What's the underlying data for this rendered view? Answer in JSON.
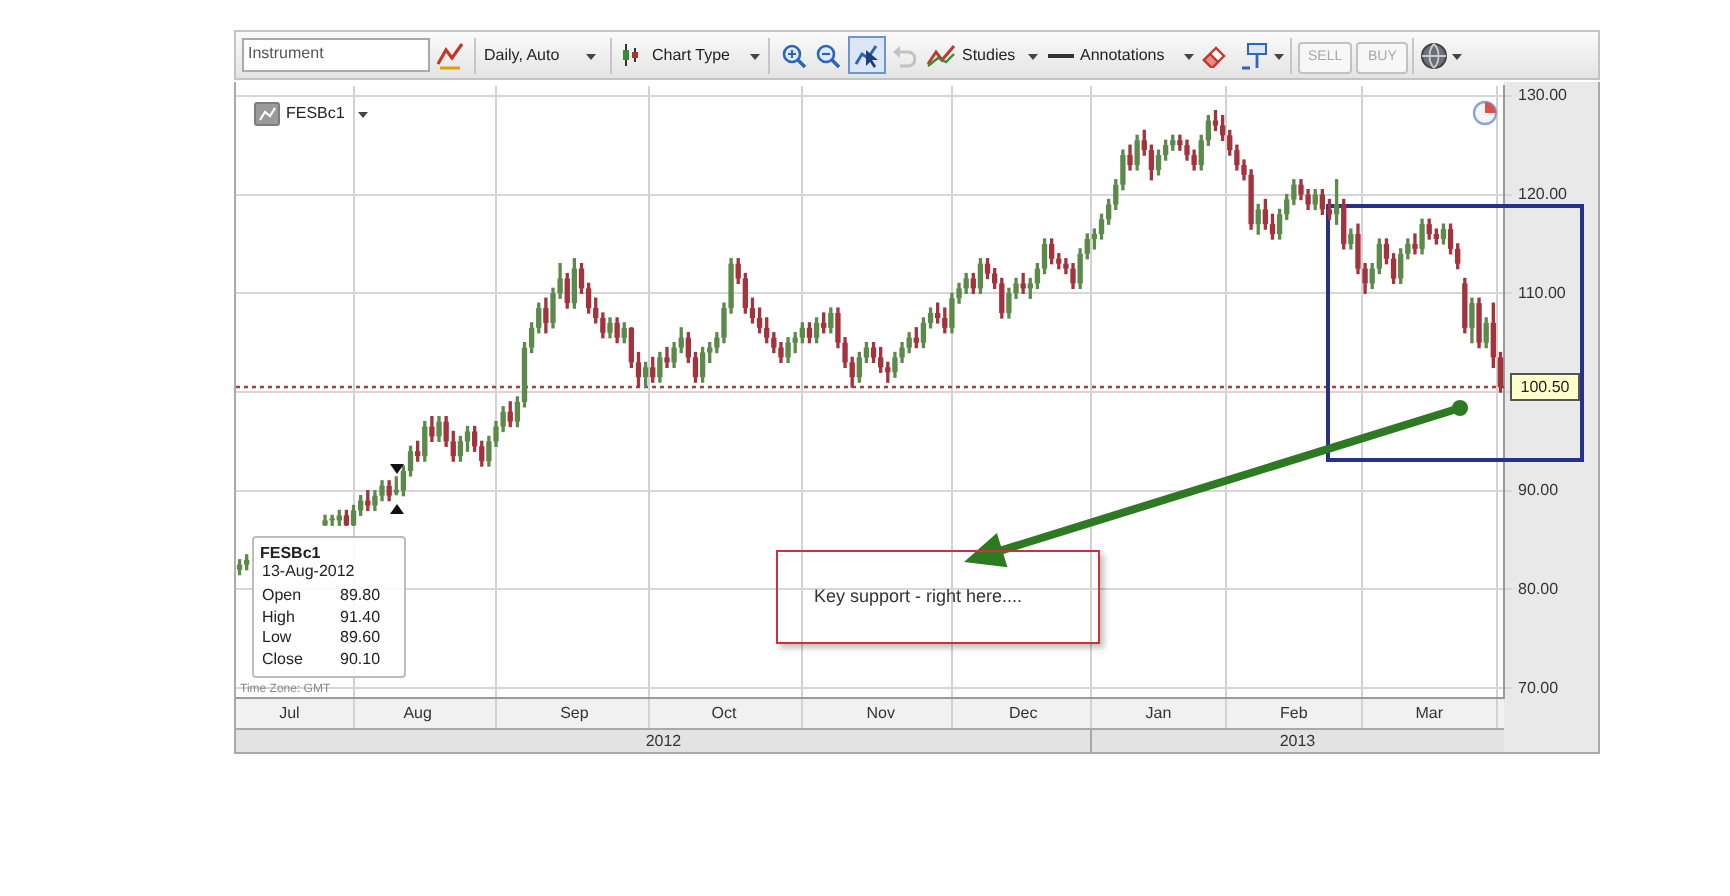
{
  "chart_data": {
    "type": "candlestick",
    "categories": [
      null,
      null,
      null,
      null,
      null,
      null,
      null,
      "Jul",
      null,
      null,
      null,
      null,
      null,
      null,
      null,
      null,
      null,
      null,
      null,
      null,
      null,
      null,
      null,
      null,
      null,
      "Aug",
      null,
      null,
      null,
      null,
      null,
      null,
      null,
      null,
      null,
      null,
      null,
      null,
      null,
      null,
      null,
      null,
      null,
      null,
      null,
      null,
      null,
      "Sep",
      null,
      null,
      null,
      null,
      null,
      null,
      null,
      null,
      null,
      null,
      null,
      null,
      null,
      null,
      null,
      null,
      null,
      null,
      null,
      null,
      "Oct",
      null,
      null,
      null,
      null,
      null,
      null,
      null,
      null,
      null,
      null,
      null,
      null,
      null,
      null,
      null,
      null,
      null,
      null,
      null,
      null,
      null,
      "Nov",
      null,
      null,
      null,
      null,
      null,
      null,
      null,
      null,
      null,
      null,
      null,
      null,
      null,
      null,
      null,
      null,
      null,
      null,
      null,
      "Dec",
      null,
      null,
      null,
      null,
      null,
      null,
      null,
      null,
      null,
      null,
      null,
      null,
      null,
      null,
      null,
      null,
      null,
      null,
      "Jan",
      null,
      null,
      null,
      null,
      null,
      null,
      null,
      null,
      null,
      null,
      null,
      null,
      null,
      null,
      null,
      null,
      null,
      null,
      "Feb",
      null,
      null,
      null,
      null,
      null,
      null,
      null,
      null,
      null,
      null,
      null,
      null,
      null,
      null,
      null,
      null,
      null,
      null,
      "Mar",
      null,
      null,
      null,
      null,
      null,
      null,
      null,
      null,
      null,
      null
    ],
    "ohlc": [
      [
        82,
        83,
        81.5,
        82.5
      ],
      [
        82.5,
        83.5,
        82,
        83
      ],
      null,
      null,
      null,
      null,
      null,
      null,
      null,
      null,
      null,
      null,
      [
        86.5,
        87.5,
        86.5,
        87
      ],
      [
        87,
        87.5,
        86.5,
        87
      ],
      [
        87,
        88,
        86.5,
        87.5
      ],
      [
        87.5,
        88,
        86.5,
        86.5
      ],
      [
        86.5,
        88.5,
        86.5,
        88
      ],
      [
        88,
        89.5,
        87.5,
        89
      ],
      [
        89,
        90,
        88,
        88.5
      ],
      [
        88.5,
        90,
        88,
        89.5
      ],
      [
        89.5,
        91,
        89,
        90.5
      ],
      [
        90.5,
        91,
        89,
        89.5
      ],
      [
        89.8,
        91.4,
        89.6,
        90.1
      ],
      [
        90,
        92.5,
        89.5,
        92
      ],
      [
        92,
        94.5,
        91.5,
        94
      ],
      [
        94,
        95,
        93,
        93.5
      ],
      [
        93.5,
        97,
        93,
        96.5
      ],
      [
        96.5,
        97.5,
        95,
        95.5
      ],
      [
        95.5,
        97.5,
        95,
        97
      ],
      [
        97,
        97.5,
        94.5,
        95
      ],
      [
        95,
        96,
        93,
        93.5
      ],
      [
        93.5,
        95.5,
        93,
        95
      ],
      [
        95,
        96.5,
        94,
        96
      ],
      [
        96,
        96.5,
        94,
        94.5
      ],
      [
        94.5,
        95,
        92.5,
        93
      ],
      [
        93,
        95.5,
        92.5,
        95
      ],
      [
        95,
        97,
        94.5,
        96.5
      ],
      [
        96.5,
        98.5,
        96,
        98
      ],
      [
        98,
        99,
        96.5,
        97
      ],
      [
        97,
        99.5,
        96.5,
        99
      ],
      [
        99,
        105,
        98.5,
        104.5
      ],
      [
        104.5,
        107,
        104,
        106.5
      ],
      [
        106.5,
        109,
        106,
        108.5
      ],
      [
        108.5,
        109.5,
        106,
        107
      ],
      [
        107,
        110.5,
        106.5,
        110
      ],
      [
        110,
        113,
        109.5,
        111.5
      ],
      [
        111.5,
        112,
        108.5,
        109
      ],
      [
        109,
        113.5,
        108.5,
        112.5
      ],
      [
        112.5,
        113,
        110,
        110.5
      ],
      [
        110.5,
        111,
        108,
        108.5
      ],
      [
        108.5,
        109.5,
        107,
        107.5
      ],
      [
        107.5,
        108,
        105.5,
        106
      ],
      [
        106,
        107.5,
        105.5,
        107
      ],
      [
        107,
        107.5,
        105,
        105.5
      ],
      [
        105.5,
        107,
        105,
        106.5
      ],
      [
        106.5,
        106.5,
        102.5,
        103
      ],
      [
        103,
        104,
        100.5,
        101.5
      ],
      [
        101.5,
        103,
        100.5,
        102.5
      ],
      [
        102.5,
        103.5,
        101,
        101.5
      ],
      [
        101.5,
        104,
        101,
        103.5
      ],
      [
        103.5,
        104.5,
        102.5,
        103
      ],
      [
        103,
        105,
        102.5,
        104.5
      ],
      [
        104.5,
        106.5,
        104,
        105.5
      ],
      [
        105.5,
        106,
        103,
        103.5
      ],
      [
        103.5,
        104,
        101,
        101.5
      ],
      [
        101.5,
        104.5,
        101,
        104
      ],
      [
        104,
        105,
        103,
        104.5
      ],
      [
        104.5,
        106,
        104,
        105.5
      ],
      [
        105.5,
        109,
        105,
        108.5
      ],
      [
        108.5,
        113.5,
        108,
        113
      ],
      [
        113,
        113.5,
        111,
        111.5
      ],
      [
        111.5,
        112,
        108,
        108.5
      ],
      [
        108.5,
        109.5,
        107,
        107.5
      ],
      [
        107.5,
        108.5,
        106,
        106.5
      ],
      [
        106.5,
        107.5,
        105,
        105.5
      ],
      [
        105.5,
        106,
        104,
        104.5
      ],
      [
        104.5,
        105,
        103,
        103.5
      ],
      [
        103.5,
        105.5,
        103,
        105
      ],
      [
        105,
        106,
        104,
        105.5
      ],
      [
        105.5,
        107,
        105,
        106.5
      ],
      [
        106.5,
        107,
        105,
        105.5
      ],
      [
        105.5,
        107.5,
        105,
        107
      ],
      [
        107,
        108,
        106,
        106.5
      ],
      [
        106.5,
        108.5,
        106,
        108
      ],
      [
        108,
        108.5,
        104.5,
        105
      ],
      [
        105,
        105.5,
        102.5,
        103
      ],
      [
        103,
        103.5,
        100.5,
        101.5
      ],
      [
        101.5,
        104,
        101,
        103.5
      ],
      [
        103.5,
        105,
        103,
        104.5
      ],
      [
        104.5,
        105,
        103,
        103.5
      ],
      [
        103.5,
        104.5,
        102,
        102.5
      ],
      [
        102.5,
        103,
        101,
        102
      ],
      [
        102,
        104,
        101.5,
        103.5
      ],
      [
        103.5,
        105,
        103,
        104.5
      ],
      [
        104.5,
        106,
        104,
        105.5
      ],
      [
        105.5,
        106.5,
        104.5,
        105
      ],
      [
        105,
        107.5,
        104.5,
        107
      ],
      [
        107,
        108.5,
        106.5,
        108
      ],
      [
        108,
        109,
        107,
        107.5
      ],
      [
        107.5,
        108.5,
        106,
        106.5
      ],
      [
        106.5,
        110,
        106,
        109.5
      ],
      [
        109.5,
        111,
        109,
        110.5
      ],
      [
        110.5,
        112,
        110,
        111.5
      ],
      [
        111.5,
        112,
        110,
        110.5
      ],
      [
        110.5,
        113.5,
        110,
        113
      ],
      [
        113,
        113.5,
        111.5,
        112
      ],
      [
        112,
        112.5,
        110.5,
        111
      ],
      [
        111,
        111.5,
        107.5,
        108
      ],
      [
        108,
        110.5,
        107.5,
        110
      ],
      [
        110,
        111.5,
        109.5,
        111
      ],
      [
        111,
        112,
        110,
        110.5
      ],
      [
        110.5,
        111.5,
        109.5,
        111
      ],
      [
        111,
        113,
        110.5,
        112.5
      ],
      [
        112.5,
        115.5,
        112,
        115
      ],
      [
        115,
        115.5,
        113,
        113.5
      ],
      [
        113.5,
        114,
        112.5,
        113
      ],
      [
        113,
        113.5,
        112,
        112.5
      ],
      [
        112.5,
        113,
        110.5,
        111
      ],
      [
        111,
        114.5,
        110.5,
        114
      ],
      [
        114,
        116,
        113.5,
        115.5
      ],
      [
        115.5,
        116.5,
        114.5,
        116
      ],
      [
        116,
        118,
        115.5,
        117.5
      ],
      [
        117.5,
        119.5,
        117,
        119
      ],
      [
        119,
        121.5,
        118.5,
        121
      ],
      [
        121,
        124.5,
        120.5,
        124
      ],
      [
        124,
        125,
        122.5,
        123
      ],
      [
        123,
        126,
        122.5,
        125.5
      ],
      [
        125.5,
        126.5,
        124,
        124.5
      ],
      [
        124.5,
        125,
        121.5,
        122.5
      ],
      [
        122.5,
        124.5,
        122,
        124
      ],
      [
        124,
        125.5,
        123.5,
        125
      ],
      [
        125,
        126,
        124.5,
        125.5
      ],
      [
        125.5,
        126,
        124.5,
        125
      ],
      [
        125,
        125.5,
        123.5,
        124
      ],
      [
        124,
        124.5,
        122.5,
        123
      ],
      [
        123,
        126,
        122.5,
        125.5
      ],
      [
        125.5,
        128,
        125,
        127.5
      ],
      [
        127.5,
        128.5,
        126.5,
        127
      ],
      [
        127,
        128,
        125.5,
        126
      ],
      [
        126,
        126.5,
        124,
        124.5
      ],
      [
        124.5,
        125,
        122.5,
        123
      ],
      [
        123,
        123.5,
        121.5,
        122
      ],
      [
        122,
        122.5,
        116.5,
        117
      ],
      [
        117,
        119,
        116,
        118.5
      ],
      [
        118.5,
        119.5,
        116.5,
        117
      ],
      [
        117,
        118,
        115.5,
        116
      ],
      [
        116,
        118.5,
        115.5,
        118
      ],
      [
        118,
        120,
        117.5,
        119.5
      ],
      [
        119.5,
        121.5,
        119,
        121
      ],
      [
        121,
        121.5,
        119.5,
        120
      ],
      [
        120,
        120.5,
        118.5,
        119
      ],
      [
        119,
        120.5,
        118.5,
        120
      ],
      [
        120,
        120.5,
        118,
        118.5
      ],
      [
        118.5,
        119.5,
        117.5,
        118
      ],
      [
        118,
        121.5,
        117,
        119
      ],
      [
        119,
        119.5,
        114.5,
        115
      ],
      [
        115,
        116.5,
        114.5,
        116
      ],
      [
        116,
        117,
        112,
        112.5
      ],
      [
        112.5,
        113,
        110,
        111
      ],
      [
        111,
        113,
        110.5,
        112.5
      ],
      [
        112.5,
        115.5,
        112,
        115
      ],
      [
        115,
        115.5,
        113,
        113.5
      ],
      [
        113.5,
        114,
        111,
        111.5
      ],
      [
        111.5,
        114.5,
        111,
        114
      ],
      [
        114,
        115.5,
        113.5,
        115
      ],
      [
        115,
        116,
        114,
        114.5
      ],
      [
        114.5,
        117.5,
        114,
        117
      ],
      [
        117,
        117.5,
        115.5,
        116
      ],
      [
        116,
        116.5,
        115,
        115.5
      ],
      [
        115.5,
        117,
        115,
        116.5
      ],
      [
        116.5,
        117,
        114,
        114.5
      ],
      [
        114.5,
        115,
        112.5,
        113
      ],
      [
        111,
        111.5,
        106,
        106.5
      ],
      [
        106.5,
        109.5,
        105,
        109
      ],
      [
        109,
        109.5,
        104.5,
        105
      ],
      [
        105,
        107.5,
        104.5,
        107
      ],
      [
        107,
        109,
        102.5,
        103.5
      ],
      [
        103.5,
        104,
        100,
        100.5
      ]
    ],
    "colors": [
      "#5b8a4a",
      "#5b8a4a",
      null,
      null,
      null,
      null,
      null,
      null,
      null,
      null,
      null,
      null,
      "#5b8a4a",
      "#5b8a4a",
      "#5b8a4a",
      "#a3333d",
      "#5b8a4a",
      "#5b8a4a",
      "#a3333d",
      "#5b8a4a",
      "#5b8a4a",
      "#a3333d",
      "#5b8a4a",
      "#5b8a4a",
      "#5b8a4a",
      "#a3333d",
      "#5b8a4a",
      "#a3333d",
      "#5b8a4a",
      "#a3333d",
      "#a3333d",
      "#5b8a4a",
      "#5b8a4a",
      "#a3333d",
      "#a3333d",
      "#5b8a4a",
      "#5b8a4a",
      "#5b8a4a",
      "#a3333d",
      "#5b8a4a",
      "#5b8a4a",
      "#5b8a4a",
      "#5b8a4a",
      "#a3333d",
      "#5b8a4a",
      "#5b8a4a",
      "#a3333d",
      "#5b8a4a",
      "#a3333d",
      "#a3333d",
      "#a3333d",
      "#a3333d",
      "#5b8a4a",
      "#a3333d",
      "#5b8a4a",
      "#a3333d",
      "#a3333d",
      "#5b8a4a",
      "#a3333d",
      "#5b8a4a",
      "#a3333d",
      "#5b8a4a",
      "#5b8a4a",
      "#a3333d",
      "#a3333d",
      "#5b8a4a",
      "#5b8a4a",
      "#5b8a4a",
      "#5b8a4a",
      "#5b8a4a",
      "#a3333d",
      "#a3333d",
      "#a3333d",
      "#a3333d",
      "#a3333d",
      "#a3333d",
      "#a3333d",
      "#5b8a4a",
      "#5b8a4a",
      "#5b8a4a",
      "#a3333d",
      "#5b8a4a",
      "#a3333d",
      "#5b8a4a",
      "#a3333d",
      "#a3333d",
      "#a3333d",
      "#5b8a4a",
      "#5b8a4a",
      "#a3333d",
      "#a3333d",
      "#a3333d",
      "#5b8a4a",
      "#5b8a4a",
      "#5b8a4a",
      "#a3333d",
      "#5b8a4a",
      "#5b8a4a",
      "#a3333d",
      "#a3333d",
      "#5b8a4a",
      "#5b8a4a",
      "#5b8a4a",
      "#a3333d",
      "#5b8a4a",
      "#a3333d",
      "#a3333d",
      "#a3333d",
      "#5b8a4a",
      "#5b8a4a",
      "#a3333d",
      "#5b8a4a",
      "#5b8a4a",
      "#5b8a4a",
      "#a3333d",
      "#a3333d",
      "#a3333d",
      "#a3333d",
      "#5b8a4a",
      "#5b8a4a",
      "#5b8a4a",
      "#5b8a4a",
      "#5b8a4a",
      "#5b8a4a",
      "#5b8a4a",
      "#a3333d",
      "#5b8a4a",
      "#a3333d",
      "#a3333d",
      "#5b8a4a",
      "#5b8a4a",
      "#5b8a4a",
      "#a3333d",
      "#a3333d",
      "#a3333d",
      "#5b8a4a",
      "#5b8a4a",
      "#a3333d",
      "#a3333d",
      "#a3333d",
      "#a3333d",
      "#a3333d",
      "#a3333d",
      "#5b8a4a",
      "#a3333d",
      "#a3333d",
      "#5b8a4a",
      "#5b8a4a",
      "#5b8a4a",
      "#a3333d",
      "#a3333d",
      "#5b8a4a",
      "#a3333d",
      "#a3333d",
      "#5b8a4a",
      "#a3333d",
      "#5b8a4a",
      "#a3333d",
      "#a3333d",
      "#5b8a4a",
      "#5b8a4a",
      "#a3333d",
      "#a3333d",
      "#5b8a4a",
      "#5b8a4a",
      "#a3333d",
      "#5b8a4a",
      "#a3333d",
      "#a3333d",
      "#5b8a4a",
      "#a3333d",
      "#a3333d",
      "#a3333d",
      "#5b8a4a",
      "#a3333d",
      "#5b8a4a",
      "#a3333d",
      "#a3333d"
    ],
    "ylim": [
      69,
      131
    ],
    "yticks": [
      {
        "value": 70,
        "label": "70.00"
      },
      {
        "value": 80,
        "label": "80.00"
      },
      {
        "value": 90,
        "label": "90.00"
      },
      {
        "value": 100,
        "label": null
      },
      {
        "value": 110,
        "label": "110.00"
      },
      {
        "value": 120,
        "label": "120.00"
      },
      {
        "value": 130,
        "label": "130.00"
      }
    ],
    "grid": true,
    "ref_lines": [
      {
        "axis": "y",
        "value": 100.5,
        "label": "100.50",
        "color": "#b33a3a",
        "line_style": "dotted"
      }
    ],
    "annotations": [
      "Instrument",
      "Daily, Auto",
      "Chart Type",
      "Studies",
      "Annotations",
      "SELL",
      "BUY",
      "FESBc1",
      "FESBc1",
      "13-Aug-2012",
      "Open 89.80",
      "High 91.40",
      "Low 89.60",
      "Close 90.10",
      "Time Zone: GMT",
      "Key support - right here....",
      "2012",
      "2013"
    ]
  }
}
